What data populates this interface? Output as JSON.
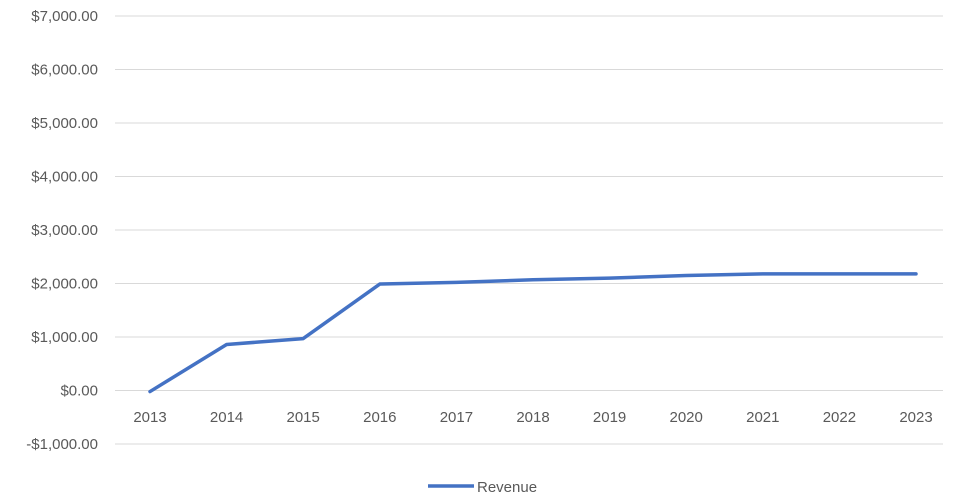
{
  "chart_data": {
    "type": "line",
    "title": "",
    "xlabel": "",
    "ylabel": "",
    "categories": [
      "2013",
      "2014",
      "2015",
      "2016",
      "2017",
      "2018",
      "2019",
      "2020",
      "2021",
      "2022",
      "2023"
    ],
    "series": [
      {
        "name": "Revenue",
        "color": "#4472C4",
        "values": [
          -20,
          860,
          970,
          1990,
          2020,
          2070,
          2100,
          2150,
          2180,
          2180,
          2180
        ]
      }
    ],
    "ylim": [
      -1000,
      7000
    ],
    "yticks": [
      7000,
      6000,
      5000,
      4000,
      3000,
      2000,
      1000,
      0,
      -1000
    ],
    "ytick_labels": [
      "$7,000.00",
      "$6,000.00",
      "$5,000.00",
      "$4,000.00",
      "$3,000.00",
      "$2,000.00",
      "$1,000.00",
      "$0.00",
      "-$1,000.00"
    ],
    "grid": true,
    "gridline_color": "#D9D9D9",
    "legend": {
      "position": "bottom",
      "entries": [
        "Revenue"
      ]
    }
  }
}
